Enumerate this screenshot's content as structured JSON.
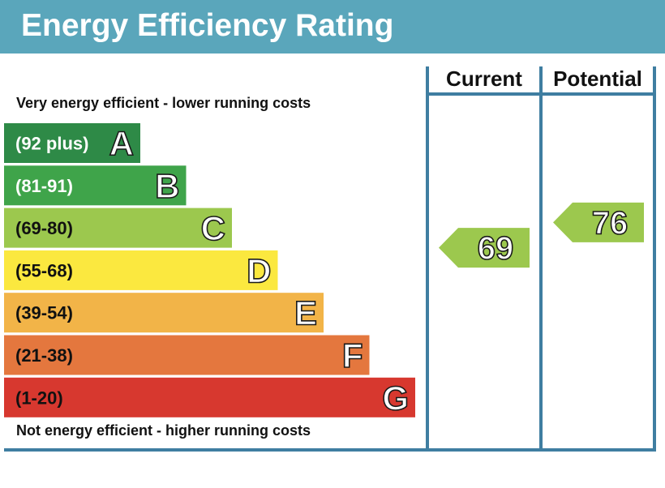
{
  "header": {
    "title": "Energy Efficiency Rating"
  },
  "colors": {
    "header_bg": "#5aa6bb",
    "frame": "#3f7ea1",
    "text_dark": "#111111",
    "A": "#2e8a47",
    "B": "#3fa44a",
    "C": "#9cc84e",
    "D": "#fbe83f",
    "E": "#f2b448",
    "F": "#e4773e",
    "G": "#d7382f"
  },
  "chart_data": {
    "type": "bar",
    "title": "Energy Efficiency Rating",
    "top_caption": "Very energy efficient - lower running costs",
    "bottom_caption": "Not energy efficient - higher running costs",
    "bands": [
      {
        "letter": "A",
        "range": "(92 plus)",
        "min": 92,
        "max": 100,
        "color": "#2e8a47",
        "text_color": "#ffffff"
      },
      {
        "letter": "B",
        "range": "(81-91)",
        "min": 81,
        "max": 91,
        "color": "#3fa44a",
        "text_color": "#ffffff"
      },
      {
        "letter": "C",
        "range": "(69-80)",
        "min": 69,
        "max": 80,
        "color": "#9cc84e",
        "text_color": "#111111"
      },
      {
        "letter": "D",
        "range": "(55-68)",
        "min": 55,
        "max": 68,
        "color": "#fbe83f",
        "text_color": "#111111"
      },
      {
        "letter": "E",
        "range": "(39-54)",
        "min": 39,
        "max": 54,
        "color": "#f2b448",
        "text_color": "#111111"
      },
      {
        "letter": "F",
        "range": "(21-38)",
        "min": 21,
        "max": 38,
        "color": "#e4773e",
        "text_color": "#111111"
      },
      {
        "letter": "G",
        "range": "(1-20)",
        "min": 1,
        "max": 20,
        "color": "#d7382f",
        "text_color": "#111111"
      }
    ],
    "columns": [
      {
        "name": "Current",
        "value": 69,
        "band": "C",
        "color": "#9cc84e"
      },
      {
        "name": "Potential",
        "value": 76,
        "band": "C",
        "color": "#9cc84e"
      }
    ]
  }
}
